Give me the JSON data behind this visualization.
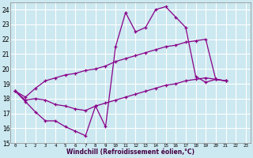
{
  "xlabel": "Windchill (Refroidissement éolien,°C)",
  "ylim": [
    15,
    24.5
  ],
  "yticks": [
    15,
    16,
    17,
    18,
    19,
    20,
    21,
    22,
    23,
    24
  ],
  "xlim": [
    -0.5,
    23.5
  ],
  "xticks": [
    0,
    1,
    2,
    3,
    4,
    5,
    6,
    7,
    8,
    9,
    10,
    11,
    12,
    13,
    14,
    15,
    16,
    17,
    18,
    19,
    20,
    21,
    22,
    23
  ],
  "bg_color": "#cce8f0",
  "grid_color": "#aaddee",
  "line_color": "#880088",
  "line1_y": [
    18.5,
    17.8,
    17.1,
    16.5,
    16.5,
    16.1,
    15.8,
    15.5,
    17.5,
    16.1,
    21.5,
    23.8,
    22.5,
    22.8,
    24.0,
    24.2,
    23.5,
    22.8,
    19.5,
    19.1,
    19.3,
    19.2
  ],
  "line2_y": [
    18.5,
    18.1,
    18.7,
    19.2,
    19.4,
    19.6,
    19.7,
    19.9,
    20.0,
    20.2,
    20.5,
    20.7,
    20.9,
    21.1,
    21.3,
    21.5,
    21.6,
    21.8,
    21.9,
    22.0,
    19.3,
    19.2
  ],
  "line3_y": [
    18.5,
    17.9,
    18.0,
    17.9,
    17.6,
    17.5,
    17.3,
    17.2,
    17.5,
    17.7,
    17.9,
    18.1,
    18.3,
    18.5,
    18.7,
    18.9,
    19.0,
    19.2,
    19.3,
    19.4,
    19.3,
    19.2
  ]
}
